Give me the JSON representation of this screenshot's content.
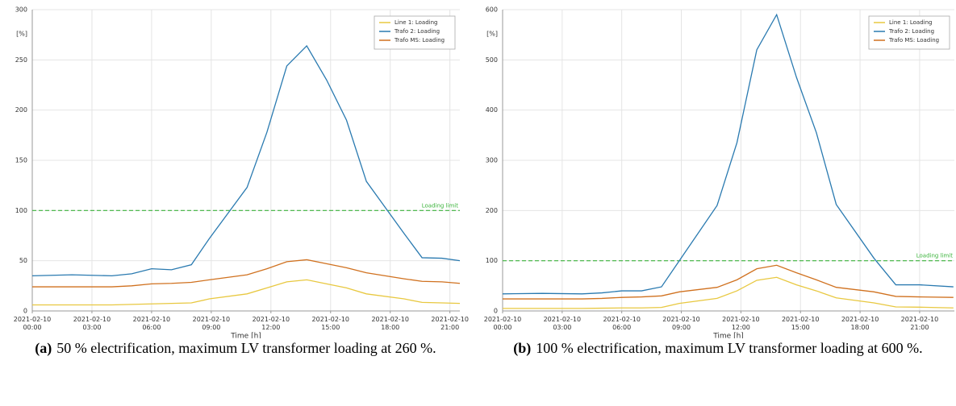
{
  "chart_data": [
    {
      "type": "line",
      "caption_label": "(a)",
      "caption": "50 % electrification, maximum LV transformer loading at 260 %.",
      "y_label": "[%]",
      "x_label": "Time [h]",
      "x": [
        0,
        2,
        4,
        5,
        6,
        7,
        8,
        8.9,
        10.8,
        11.8,
        12.8,
        13.8,
        14.8,
        15.8,
        16.8,
        18.7,
        19.6,
        20.6,
        21.5
      ],
      "xlim": [
        0,
        21.5
      ],
      "xticks": [
        {
          "value": 0,
          "label": "2021-02-10 00:00"
        },
        {
          "value": 3,
          "label": "2021-02-10 03:00"
        },
        {
          "value": 6,
          "label": "2021-02-10 06:00"
        },
        {
          "value": 9,
          "label": "2021-02-10 09:00"
        },
        {
          "value": 12,
          "label": "2021-02-10 12:00"
        },
        {
          "value": 15,
          "label": "2021-02-10 15:00"
        },
        {
          "value": 18,
          "label": "2021-02-10 18:00"
        },
        {
          "value": 21,
          "label": "2021-02-10 21:00"
        }
      ],
      "ylim": [
        0,
        300
      ],
      "yticks": [
        0,
        50,
        100,
        150,
        200,
        250,
        300
      ],
      "grid": true,
      "legend": "upper right",
      "threshold": {
        "value": 100,
        "label": "Loading limit",
        "color": "#3cb43c"
      },
      "series": [
        {
          "name": "Line 1: Loading",
          "color": "#e8c840",
          "values": [
            6,
            6,
            6,
            6.5,
            7,
            7.5,
            8,
            12,
            17,
            23,
            29,
            31,
            27,
            23,
            17,
            12,
            8.5,
            8,
            7.5
          ]
        },
        {
          "name": "Trafo 2: Loading",
          "color": "#2a7ab0",
          "values": [
            35,
            36,
            35,
            37,
            42,
            41,
            46,
            72,
            123,
            178,
            244,
            264,
            230,
            190,
            129,
            77,
            53,
            52.5,
            50
          ]
        },
        {
          "name": "Trafo MS: Loading",
          "color": "#d0711f",
          "values": [
            24,
            24,
            24,
            25,
            27,
            27.5,
            28.5,
            31,
            36,
            42,
            49,
            51,
            47,
            43,
            38,
            32,
            29.5,
            29,
            27.5
          ]
        }
      ]
    },
    {
      "type": "line",
      "caption_label": "(b)",
      "caption": "100 % electrification, maximum LV transformer loading at 600 %.",
      "y_label": "[%]",
      "x_label": "Time [h]",
      "x": [
        0,
        2,
        4,
        5,
        6,
        7,
        8,
        8.9,
        10.8,
        11.8,
        12.8,
        13.8,
        14.8,
        15.8,
        16.8,
        18.7,
        19.8,
        21,
        22.7
      ],
      "xlim": [
        0,
        22.75
      ],
      "xticks": [
        {
          "value": 0,
          "label": "2021-02-10 00:00"
        },
        {
          "value": 3,
          "label": "2021-02-10 03:00"
        },
        {
          "value": 6,
          "label": "2021-02-10 06:00"
        },
        {
          "value": 9,
          "label": "2021-02-10 09:00"
        },
        {
          "value": 12,
          "label": "2021-02-10 12:00"
        },
        {
          "value": 15,
          "label": "2021-02-10 15:00"
        },
        {
          "value": 18,
          "label": "2021-02-10 18:00"
        },
        {
          "value": 21,
          "label": "2021-02-10 21:00"
        }
      ],
      "ylim": [
        0,
        600
      ],
      "yticks": [
        0,
        100,
        200,
        300,
        400,
        500,
        600
      ],
      "grid": true,
      "legend": "upper right",
      "threshold": {
        "value": 100,
        "label": "Loading limit",
        "color": "#3cb43c"
      },
      "series": [
        {
          "name": "Line 1: Loading",
          "color": "#e8c840",
          "values": [
            5,
            5,
            5,
            5.5,
            6,
            6,
            7,
            15,
            25,
            40,
            61,
            67,
            52,
            40,
            26,
            16,
            8,
            7.5,
            6
          ]
        },
        {
          "name": "Trafo 2: Loading",
          "color": "#2a7ab0",
          "values": [
            34,
            35,
            34,
            36,
            40,
            40,
            48,
            100,
            210,
            335,
            520,
            590,
            465,
            355,
            212,
            105,
            52,
            52,
            48
          ]
        },
        {
          "name": "Trafo MS: Loading",
          "color": "#d0711f",
          "values": [
            24,
            24,
            24,
            25,
            27,
            28,
            30,
            38,
            47,
            62,
            84,
            91,
            76,
            62,
            47,
            38,
            29,
            28,
            27
          ]
        }
      ]
    }
  ]
}
